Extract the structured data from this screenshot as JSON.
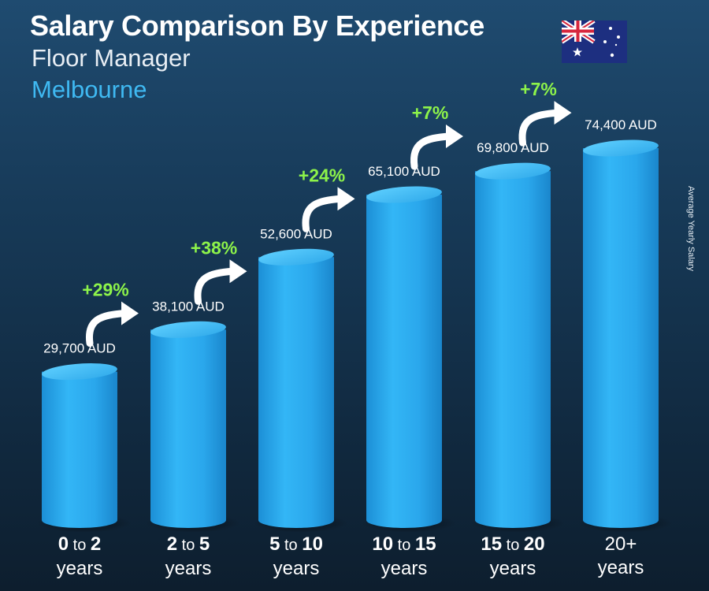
{
  "header": {
    "title": "Salary Comparison By Experience",
    "job": "Floor Manager",
    "city": "Melbourne",
    "side_label": "Average Yearly Salary"
  },
  "colors": {
    "bar": "#2eaef0",
    "bar_top": "#43c2fb",
    "pct": "#8df34a",
    "city": "#3fb9f2"
  },
  "icons": {
    "flag": "australia-flag-icon",
    "arrow": "curved-arrow-icon"
  },
  "chart_data": {
    "type": "bar",
    "categories": [
      "0 to 2 years",
      "2 to 5 years",
      "5 to 10 years",
      "10 to 15 years",
      "15 to 20 years",
      "20+ years"
    ],
    "values": [
      29700,
      38100,
      52600,
      65100,
      69800,
      74400
    ],
    "value_labels": [
      "29,700 AUD",
      "38,100 AUD",
      "52,600 AUD",
      "65,100 AUD",
      "69,800 AUD",
      "74,400 AUD"
    ],
    "increments": [
      "+29%",
      "+38%",
      "+24%",
      "+7%",
      "+7%"
    ],
    "unit": "AUD",
    "ylim": [
      0,
      74400
    ],
    "grid": false,
    "legend": "none",
    "xlabels": [
      {
        "a": "0",
        "to": "to",
        "b": "2",
        "c": "years"
      },
      {
        "a": "2",
        "to": "to",
        "b": "5",
        "c": "years"
      },
      {
        "a": "5",
        "to": "to",
        "b": "10",
        "c": "years"
      },
      {
        "a": "10",
        "to": "to",
        "b": "15",
        "c": "years"
      },
      {
        "a": "15",
        "to": "to",
        "b": "20",
        "c": "years"
      },
      {
        "a": "20+",
        "to": "",
        "b": "",
        "c": "years"
      }
    ]
  }
}
